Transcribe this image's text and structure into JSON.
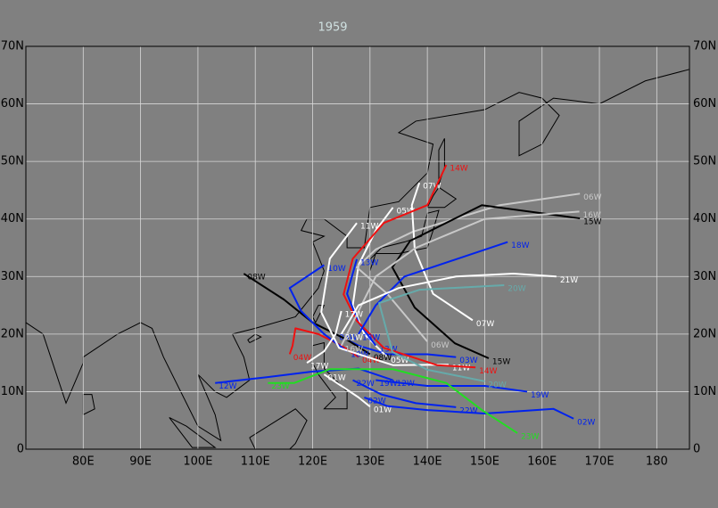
{
  "chart_data": {
    "type": "map",
    "title": "1959",
    "xlim": [
      70,
      185.7
    ],
    "ylim": [
      0,
      70
    ],
    "xticks": [
      {
        "value": 80,
        "label": "80E"
      },
      {
        "value": 90,
        "label": "90E"
      },
      {
        "value": 100,
        "label": "100E"
      },
      {
        "value": 110,
        "label": "110E"
      },
      {
        "value": 120,
        "label": "120E"
      },
      {
        "value": 130,
        "label": "130E"
      },
      {
        "value": 140,
        "label": "140E"
      },
      {
        "value": 150,
        "label": "150E"
      },
      {
        "value": 160,
        "label": "160E"
      },
      {
        "value": 170,
        "label": "170E"
      },
      180
    ],
    "yticks": [
      0,
      {
        "value": 10,
        "label": "10N"
      },
      {
        "value": 20,
        "label": "20N"
      },
      {
        "value": 30,
        "label": "30N"
      },
      {
        "value": 40,
        "label": "40N"
      },
      {
        "value": 50,
        "label": "50N"
      },
      {
        "value": 60,
        "label": "60N"
      },
      {
        "value": 70,
        "label": "70N"
      }
    ],
    "grid": true,
    "series": [
      {
        "name": "01W",
        "color": "#ffffff",
        "lon": [
          130,
          128,
          125,
          122
        ],
        "lat": [
          7.4,
          9,
          11,
          13
        ]
      },
      {
        "name": "02W",
        "color": "#0022ee",
        "lon": [
          165.5,
          162,
          150,
          140,
          133,
          129
        ],
        "lat": [
          5.3,
          7,
          6.2,
          6.8,
          7.5,
          9
        ]
      },
      {
        "name": "03W",
        "color": "#0022ee",
        "lon": [
          145,
          140,
          133,
          128,
          124
        ],
        "lat": [
          16,
          16.5,
          16.5,
          18,
          20
        ]
      },
      {
        "name": "04W",
        "color": "#ee1111",
        "lon": [
          128,
          125,
          121,
          117,
          116.5,
          116
        ],
        "lat": [
          16,
          18,
          20,
          21,
          18,
          16.5
        ]
      },
      {
        "name": "05W",
        "color": "#ffffff",
        "lon": [
          133,
          129,
          127,
          128,
          131,
          134
        ],
        "lat": [
          16,
          20,
          25,
          32,
          38,
          42
        ]
      },
      {
        "name": "06W",
        "color": "#c8c8c8",
        "lon": [
          140,
          133,
          127.7,
          131,
          137.5,
          152.6,
          166.6
        ],
        "lat": [
          18.7,
          27,
          31.6,
          34.7,
          37.8,
          42.4,
          44.4
        ]
      },
      {
        "name": "07W",
        "color": "#ffffff",
        "lon": [
          147.9,
          141,
          137.8,
          137.3,
          138.6
        ],
        "lat": [
          22.4,
          27,
          34.7,
          42.4,
          46.3
        ]
      },
      {
        "name": "08W",
        "color": "#000000",
        "lon": [
          130,
          126,
          120,
          115,
          108
        ],
        "lat": [
          16.5,
          19,
          22,
          26,
          30.5
        ]
      },
      {
        "name": "10W",
        "color": "#0022ee",
        "lon": [
          126,
          122,
          118,
          116,
          122
        ],
        "lat": [
          17,
          20,
          24,
          28,
          32
        ]
      },
      {
        "name": "11W",
        "color": "#ffffff",
        "lon": [
          143.7,
          134,
          124.6,
          121.5,
          123,
          127.7
        ],
        "lat": [
          14.7,
          14.6,
          17.6,
          23.8,
          33.1,
          39.3
        ]
      },
      {
        "name": "12W",
        "color": "#0022ee",
        "lon": [
          134,
          128,
          120,
          112,
          103
        ],
        "lat": [
          12,
          14,
          13.5,
          12.5,
          11.5
        ]
      },
      {
        "name": "13W",
        "color": "#0022ee",
        "lon": [
          131,
          128,
          126,
          127.7
        ],
        "lat": [
          18,
          22,
          27,
          33
        ]
      },
      {
        "name": "14W",
        "color": "#ee1111",
        "lon": [
          148.4,
          141.7,
          132.4,
          127.7,
          125.4,
          127,
          132.4,
          140,
          143.3
        ],
        "lat": [
          14.2,
          14.6,
          17.6,
          22.3,
          26.9,
          33.1,
          39.3,
          42.4,
          49.4
        ]
      },
      {
        "name": "15W",
        "color": "#000000",
        "lon": [
          150.7,
          144.8,
          137.8,
          133.9,
          137,
          149.5,
          166.6
        ],
        "lat": [
          15.8,
          18.4,
          24.6,
          31.6,
          36.2,
          42.4,
          40.1
        ]
      },
      {
        "name": "16W",
        "color": "#c8c8c8",
        "lon": [
          125,
          128,
          131,
          138,
          150,
          166.5
        ],
        "lat": [
          18,
          24,
          30,
          35,
          40,
          41.3
        ]
      },
      {
        "name": "17W",
        "color": "#ffffff",
        "lon": [
          119,
          122,
          124,
          125
        ],
        "lat": [
          15,
          17,
          20,
          24
        ]
      },
      {
        "name": "18W",
        "color": "#0022ee",
        "lon": [
          128,
          131,
          136,
          145,
          154
        ],
        "lat": [
          20,
          25,
          30,
          33,
          36
        ]
      },
      {
        "name": "19W",
        "color": "#0022ee",
        "lon": [
          157.4,
          150,
          140,
          131
        ],
        "lat": [
          10,
          11,
          11,
          12
        ]
      },
      {
        "name": "20W",
        "color": "#66aaaa",
        "lon": [
          150,
          140,
          133.9,
          131.6,
          138.6,
          153.4
        ],
        "lat": [
          11.8,
          13.8,
          16.9,
          25.4,
          27.7,
          28.5
        ]
      },
      {
        "name": "21W",
        "color": "#ffffff",
        "lon": [
          125,
          128,
          135,
          145,
          155,
          162.5
        ],
        "lat": [
          20,
          25,
          28,
          30,
          30.5,
          30
        ]
      },
      {
        "name": "22W",
        "color": "#0022ee",
        "lon": [
          145,
          138,
          132,
          127
        ],
        "lat": [
          7.3,
          8,
          9.5,
          12
        ]
      },
      {
        "name": "23W",
        "color": "#22dd22",
        "lon": [
          155.7,
          149.5,
          143.3,
          134,
          123,
          116.8,
          112.2
        ],
        "lat": [
          2.8,
          6.8,
          11.5,
          13.9,
          13.9,
          11.5,
          11.5
        ]
      }
    ]
  }
}
